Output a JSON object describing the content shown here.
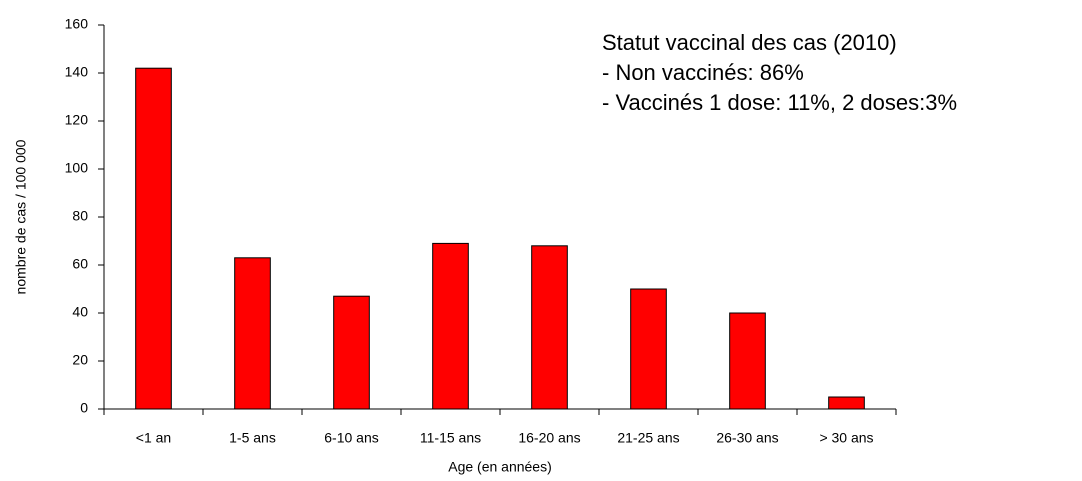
{
  "chart_data": {
    "type": "bar",
    "categories": [
      "<1 an",
      "1-5 ans",
      "6-10 ans",
      "11-15 ans",
      "16-20 ans",
      "21-25 ans",
      "26-30 ans",
      "> 30 ans"
    ],
    "values": [
      142,
      63,
      47,
      69,
      68,
      50,
      40,
      5
    ],
    "color": "#ff0000",
    "xlabel": "Age (en années)",
    "ylabel": "nombre de cas / 100 000",
    "annotations": [
      "Statut vaccinal des cas (2010)",
      "- Non vaccinés: 86%",
      "- Vaccinés 1 dose: 11%, 2 doses:3%"
    ],
    "ylim": [
      0,
      160
    ],
    "yticks": [
      0,
      20,
      40,
      60,
      80,
      100,
      120,
      140,
      160
    ],
    "grid": false
  }
}
